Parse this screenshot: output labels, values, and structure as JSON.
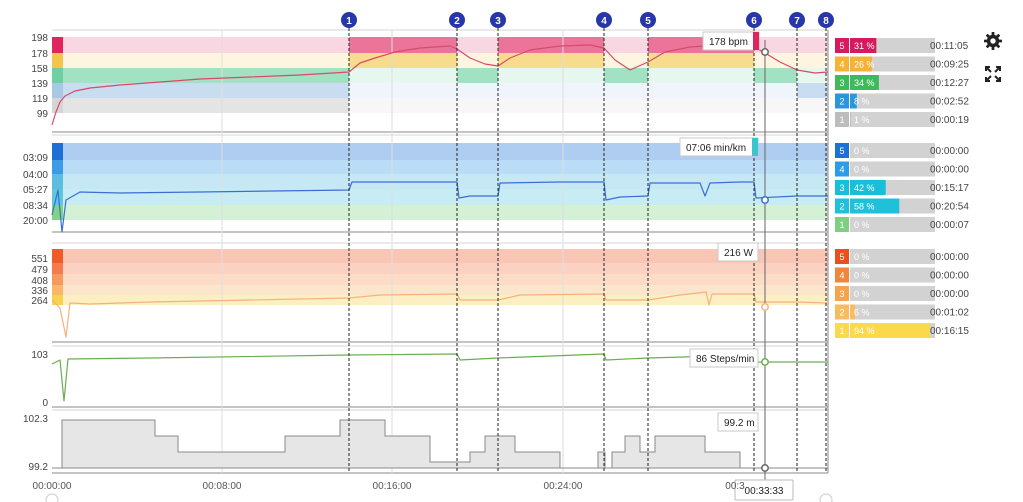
{
  "colors": {
    "hr": [
      "#d5d5d5",
      "#a8c9e6",
      "#6ed0a0",
      "#f3c64b",
      "#e0245e"
    ],
    "hr_legend": [
      "#bdbdbd",
      "#2a96dc",
      "#3dbb5b",
      "#f5b335",
      "#d8195d"
    ],
    "pace": [
      "#83d387",
      "#5fc8dd",
      "#5dbde1",
      "#3b9be6",
      "#1b6fd5"
    ],
    "pace_legend": [
      "#7ed07f",
      "#1fc0da",
      "#19bfd8",
      "#2b9ce6",
      "#1a72d6"
    ],
    "power": [
      "#f6d24f",
      "#f7b66a",
      "#f59a5c",
      "#f47b4c",
      "#ee5c2a"
    ],
    "power_legend": [
      "#fbd94a",
      "#f7bc60",
      "#f5a34d",
      "#f2843c",
      "#e8501e"
    ],
    "hr_line": "#d94a69",
    "pace_line": "#3a6ed4",
    "power_line": "#f5b27f",
    "cadence_line": "#6aae4f",
    "marker": "#2736a8",
    "accent_pace_tag": "#38c6cc"
  },
  "markers": [
    "1",
    "2",
    "3",
    "4",
    "5",
    "6",
    "7",
    "8"
  ],
  "x_axis": {
    "labels": [
      "00:00:00",
      "00:08:00",
      "00:16:00",
      "00:24:00",
      "00:3"
    ],
    "cursor_time": "00:33:33"
  },
  "hr": {
    "ticks": [
      "198",
      "178",
      "158",
      "139",
      "119",
      "99"
    ],
    "tooltip": "178 bpm",
    "zones": [
      {
        "num": "5",
        "pct": "31 %",
        "time": "00:11:05",
        "pct_value": 31
      },
      {
        "num": "4",
        "pct": "26 %",
        "time": "00:09:25",
        "pct_value": 26
      },
      {
        "num": "3",
        "pct": "34 %",
        "time": "00:12:27",
        "pct_value": 34
      },
      {
        "num": "2",
        "pct": "8 %",
        "time": "00:02:52",
        "pct_value": 8
      },
      {
        "num": "1",
        "pct": "1 %",
        "time": "00:00:19",
        "pct_value": 1
      }
    ]
  },
  "pace": {
    "ticks": [
      "03:09",
      "04:00",
      "05:27",
      "08:34",
      "20:00"
    ],
    "tooltip": "07:06 min/km",
    "zones": [
      {
        "num": "5",
        "pct": "0 %",
        "time": "00:00:00",
        "pct_value": 0
      },
      {
        "num": "4",
        "pct": "0 %",
        "time": "00:00:00",
        "pct_value": 0
      },
      {
        "num": "3",
        "pct": "42 %",
        "time": "00:15:17",
        "pct_value": 42
      },
      {
        "num": "2",
        "pct": "58 %",
        "time": "00:20:54",
        "pct_value": 58
      },
      {
        "num": "1",
        "pct": "0 %",
        "time": "00:00:07",
        "pct_value": 0
      }
    ]
  },
  "power": {
    "ticks": [
      "551",
      "479",
      "408",
      "336",
      "264"
    ],
    "tooltip": "216 W",
    "zones": [
      {
        "num": "5",
        "pct": "0 %",
        "time": "00:00:00",
        "pct_value": 0
      },
      {
        "num": "4",
        "pct": "0 %",
        "time": "00:00:00",
        "pct_value": 0
      },
      {
        "num": "3",
        "pct": "0 %",
        "time": "00:00:00",
        "pct_value": 0
      },
      {
        "num": "2",
        "pct": "6 %",
        "time": "00:01:02",
        "pct_value": 6
      },
      {
        "num": "1",
        "pct": "94 %",
        "time": "00:16:15",
        "pct_value": 94
      }
    ]
  },
  "cadence": {
    "ticks": [
      "103",
      "0"
    ],
    "tooltip": "86 Steps/min"
  },
  "elevation": {
    "ticks": [
      "102.3",
      "99.2"
    ],
    "tooltip": "99.2 m"
  },
  "icons": {
    "settings": "gear-icon",
    "fullscreen": "expand-icon"
  }
}
